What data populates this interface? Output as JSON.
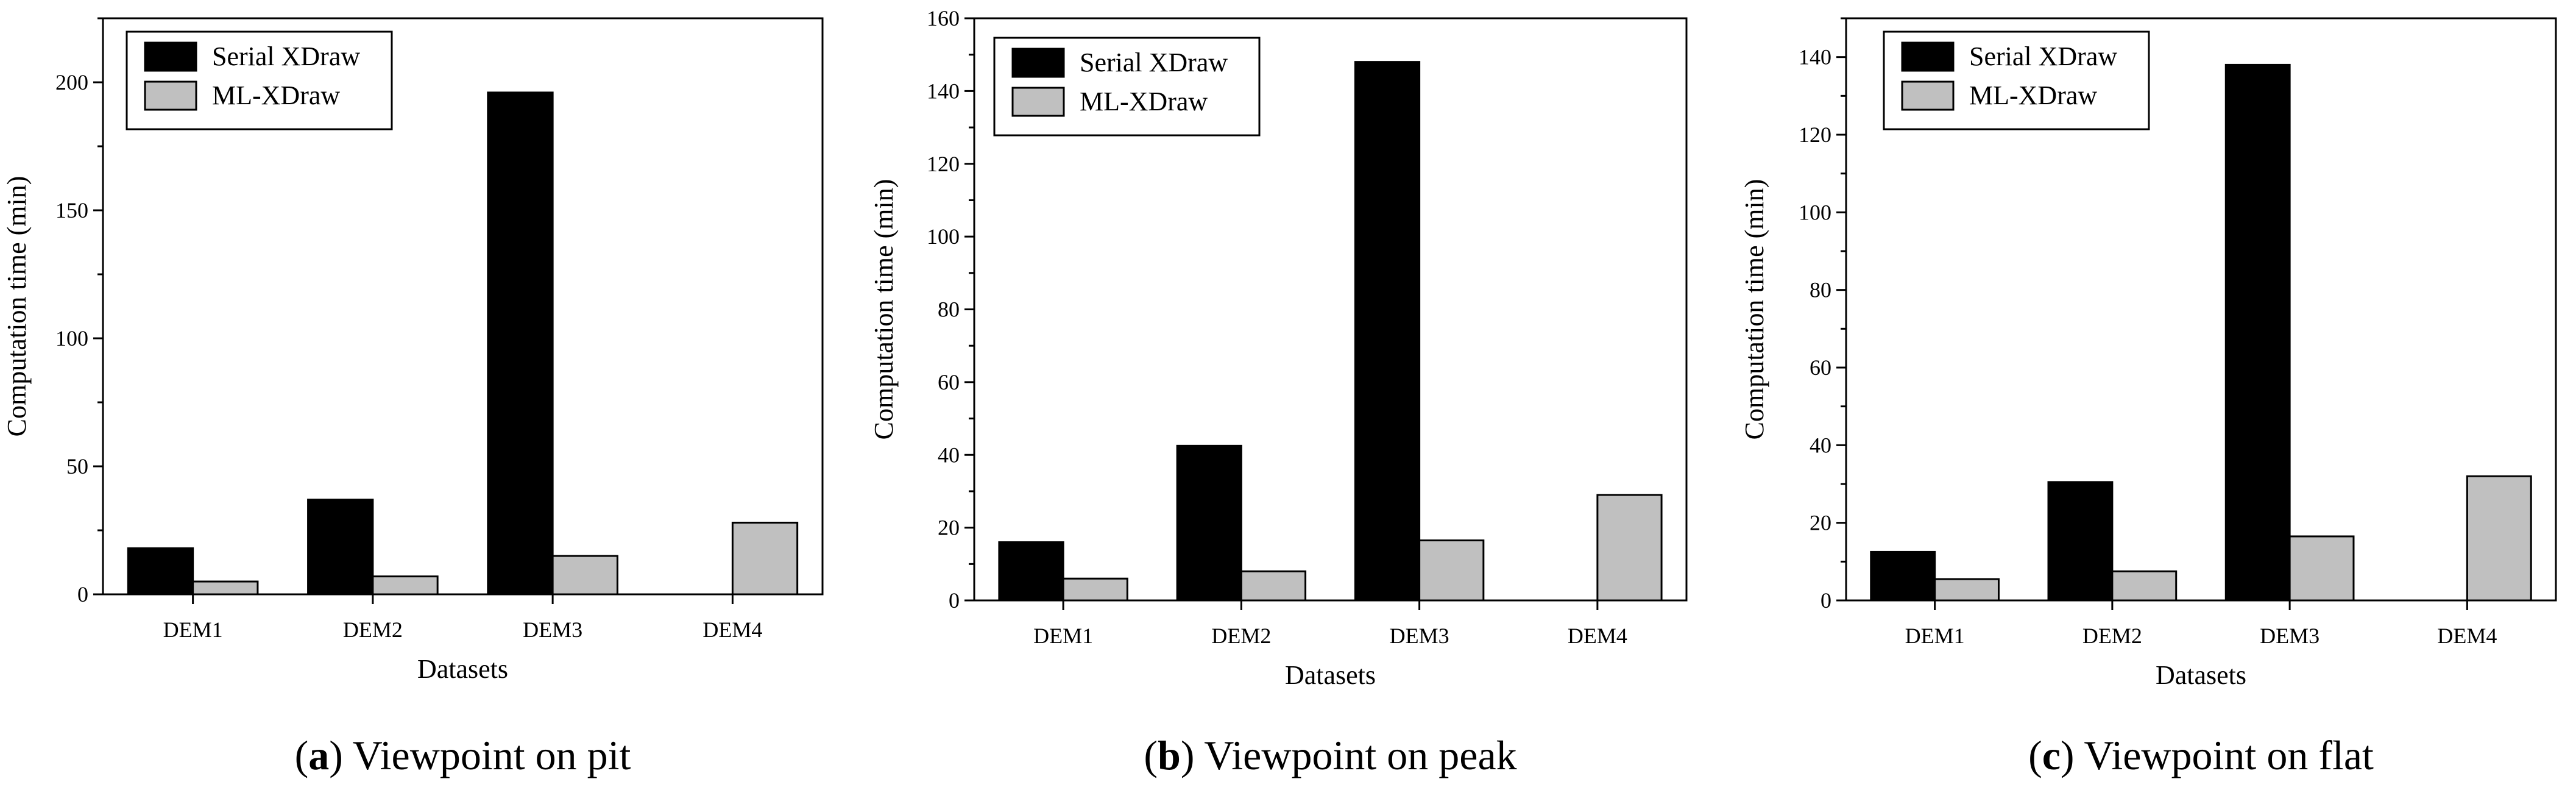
{
  "figure": {
    "panels": [
      "a",
      "b",
      "c"
    ]
  },
  "chart_data": [
    {
      "id": "a",
      "type": "bar",
      "title": "Viewpoint on pit",
      "caption_letter": "a",
      "caption_text": "Viewpoint on pit",
      "xlabel": "Datasets",
      "ylabel": "Computation time (min)",
      "categories": [
        "DEM1",
        "DEM2",
        "DEM3",
        "DEM4"
      ],
      "series": [
        {
          "name": "Serial XDraw",
          "color": "#000000",
          "values": [
            18,
            37,
            196,
            null
          ]
        },
        {
          "name": "ML-XDraw",
          "color": "#c0c0c0",
          "values": [
            5,
            7,
            15,
            28
          ]
        }
      ],
      "ylim": [
        0,
        225
      ],
      "yticks": [
        0,
        50,
        100,
        150,
        200
      ],
      "ytick_labels": [
        "0",
        "50",
        "100",
        "150",
        "200"
      ],
      "grid": false,
      "legend": "top-left"
    },
    {
      "id": "b",
      "type": "bar",
      "title": "Viewpoint on peak",
      "caption_letter": "b",
      "caption_text": "Viewpoint on peak",
      "xlabel": "Datasets",
      "ylabel": "Computation time (min)",
      "categories": [
        "DEM1",
        "DEM2",
        "DEM3",
        "DEM4"
      ],
      "series": [
        {
          "name": "Serial XDraw",
          "color": "#000000",
          "values": [
            16,
            42.5,
            148,
            null
          ]
        },
        {
          "name": "ML-XDraw",
          "color": "#c0c0c0",
          "values": [
            6,
            8,
            16.5,
            29
          ]
        }
      ],
      "ylim": [
        0,
        160
      ],
      "yticks": [
        0,
        20,
        40,
        60,
        80,
        100,
        120,
        140,
        160
      ],
      "ytick_labels": [
        "0",
        "20",
        "40",
        "60",
        "80",
        "100",
        "120",
        "140",
        "160"
      ],
      "grid": false,
      "legend": "top-left"
    },
    {
      "id": "c",
      "type": "bar",
      "title": "Viewpoint on flat",
      "caption_letter": "c",
      "caption_text": "Viewpoint on flat",
      "xlabel": "Datasets",
      "ylabel": "Computation time (min)",
      "categories": [
        "DEM1",
        "DEM2",
        "DEM3",
        "DEM4"
      ],
      "series": [
        {
          "name": "Serial XDraw",
          "color": "#000000",
          "values": [
            12.5,
            30.5,
            138,
            null
          ]
        },
        {
          "name": "ML-XDraw",
          "color": "#c0c0c0",
          "values": [
            5.5,
            7.5,
            16.5,
            32
          ]
        }
      ],
      "ylim": [
        0,
        150
      ],
      "yticks": [
        0,
        20,
        40,
        60,
        80,
        100,
        120,
        140
      ],
      "ytick_labels": [
        "0",
        "20",
        "40",
        "60",
        "80",
        "100",
        "120",
        "140"
      ],
      "grid": false,
      "legend": "top-left"
    }
  ]
}
